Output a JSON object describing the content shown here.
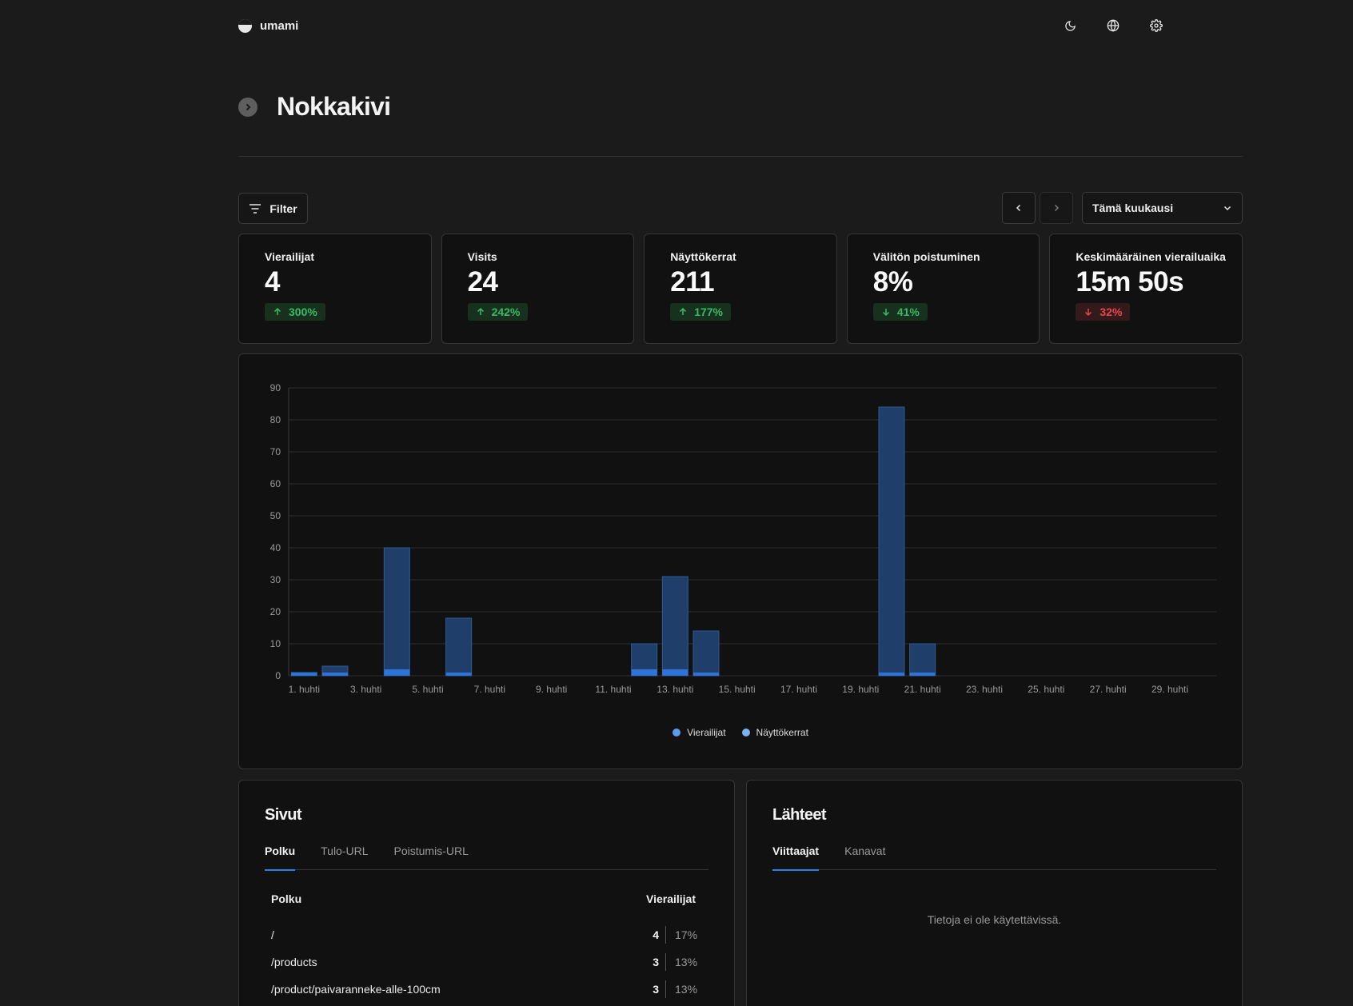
{
  "brand": {
    "name": "umami",
    "logo_icon": "umami-logo-icon"
  },
  "top_icons": [
    "moon-icon",
    "globe-icon",
    "gear-icon"
  ],
  "website": {
    "title": "Nokkakivi"
  },
  "toolbar": {
    "filter_label": "Filter",
    "date_range": "Tämä kuukausi"
  },
  "metrics": [
    {
      "label": "Vierailijat",
      "value": "4",
      "change": "300%",
      "direction": "up"
    },
    {
      "label": "Visits",
      "value": "24",
      "change": "242%",
      "direction": "up"
    },
    {
      "label": "Näyttökerrat",
      "value": "211",
      "change": "177%",
      "direction": "up"
    },
    {
      "label": "Välitön poistuminen",
      "value": "8%",
      "change": "41%",
      "direction": "up"
    },
    {
      "label": "Keskimääräinen vierailuaika",
      "value": "15m 50s",
      "change": "32%",
      "direction": "down"
    }
  ],
  "chart_data": {
    "type": "bar",
    "x": [
      "1. huhti",
      "2. huhti",
      "3. huhti",
      "4. huhti",
      "5. huhti",
      "6. huhti",
      "7. huhti",
      "8. huhti",
      "9. huhti",
      "10. huhti",
      "11. huhti",
      "12. huhti",
      "13. huhti",
      "14. huhti",
      "15. huhti",
      "16. huhti",
      "17. huhti",
      "18. huhti",
      "19. huhti",
      "20. huhti",
      "21. huhti",
      "22. huhti",
      "23. huhti",
      "24. huhti",
      "25. huhti",
      "26. huhti",
      "27. huhti",
      "28. huhti",
      "29. huhti",
      "30. huhti"
    ],
    "tick_labels": [
      "1. huhti",
      "3. huhti",
      "5. huhti",
      "7. huhti",
      "9. huhti",
      "11. huhti",
      "13. huhti",
      "15. huhti",
      "17. huhti",
      "19. huhti",
      "21. huhti",
      "23. huhti",
      "25. huhti",
      "27. huhti",
      "29. huhti"
    ],
    "series": [
      {
        "name": "Vierailijat",
        "color": "#2e74d8",
        "values": [
          1,
          1,
          0,
          2,
          0,
          1,
          0,
          0,
          0,
          0,
          0,
          2,
          2,
          1,
          0,
          0,
          0,
          0,
          0,
          1,
          1,
          0,
          0,
          0,
          0,
          0,
          0,
          0,
          0,
          0
        ]
      },
      {
        "name": "Näyttökerrat",
        "color": "#1f3f6a",
        "values": [
          1,
          3,
          0,
          40,
          0,
          18,
          0,
          0,
          0,
          0,
          0,
          10,
          31,
          14,
          0,
          0,
          0,
          0,
          0,
          84,
          10,
          0,
          0,
          0,
          0,
          0,
          0,
          0,
          0,
          0
        ]
      }
    ],
    "ylim": [
      0,
      90
    ],
    "yticks": [
      0,
      10,
      20,
      30,
      40,
      50,
      60,
      70,
      80,
      90
    ],
    "grid": true,
    "legend_position": "bottom",
    "legend_colors": [
      "#5b9bea",
      "#7cb0f0"
    ]
  },
  "pages_panel": {
    "title": "Sivut",
    "tabs": [
      "Polku",
      "Tulo-URL",
      "Poistumis-URL"
    ],
    "col_label": "Polku",
    "col_value": "Vierailijat",
    "rows": [
      {
        "label": "/",
        "count": "4",
        "pct": "17%"
      },
      {
        "label": "/products",
        "count": "3",
        "pct": "13%"
      },
      {
        "label": "/product/paivaranneke-alle-100cm",
        "count": "3",
        "pct": "13%"
      }
    ]
  },
  "sources_panel": {
    "title": "Lähteet",
    "tabs": [
      "Viittaajat",
      "Kanavat"
    ],
    "empty_text": "Tietoja ei ole käytettävissä."
  }
}
